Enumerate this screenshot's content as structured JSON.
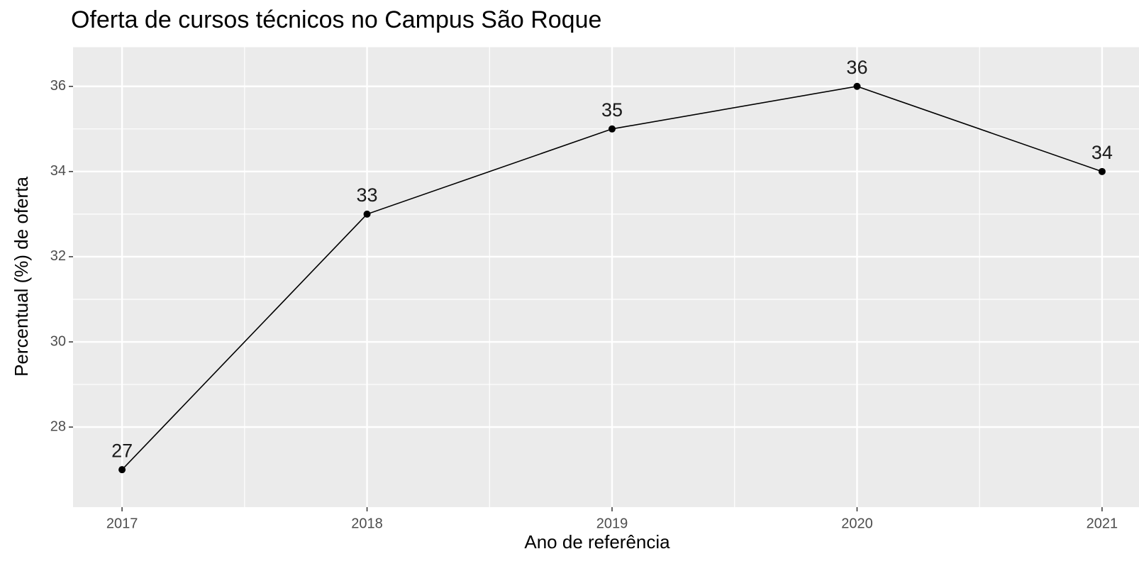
{
  "chart_data": {
    "type": "line",
    "title": "Oferta de cursos técnicos no Campus São Roque",
    "x_label": "Ano de referência",
    "y_label": "Percentual (%) de oferta",
    "x": [
      2017,
      2018,
      2019,
      2020,
      2021
    ],
    "values": [
      27,
      33,
      35,
      36,
      34
    ],
    "color": "#000000",
    "xlim": [
      2016.8,
      2021.2
    ],
    "xticks": [
      2017,
      2018,
      2019,
      2020,
      2021
    ],
    "ylim": [
      26.12,
      36.92
    ],
    "yticks": [
      28,
      30,
      32,
      34,
      36
    ],
    "grid": true,
    "data_labels": true
  }
}
